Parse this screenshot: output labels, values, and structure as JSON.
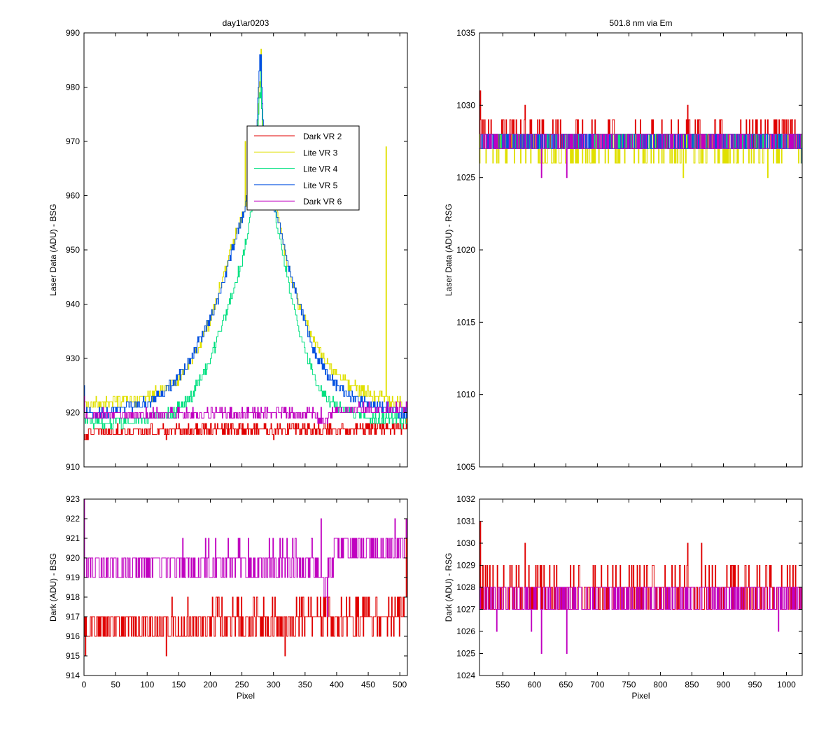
{
  "figure": {
    "background": "#ffffff",
    "trace_note": "traces are noisy integer-ADU steps; values listed are key points of the visible envelope"
  },
  "chart_data": [
    {
      "id": "bsg-laser",
      "type": "line",
      "title": "day1\\ar0203",
      "xlabel": "",
      "ylabel": "Laser Data (ADU) - BSG",
      "xlim": [
        0,
        512
      ],
      "ylim": [
        910,
        990
      ],
      "xticks": [
        0,
        50,
        100,
        150,
        200,
        250,
        300,
        350,
        400,
        450,
        500
      ],
      "xtick_labels_visible": false,
      "yticks": [
        910,
        920,
        930,
        940,
        950,
        960,
        970,
        980,
        990
      ],
      "grid": false,
      "legend": {
        "placement": "upper-middle-right",
        "entries": [
          "Dark VR 2",
          "Lite VR 3",
          "Lite VR 4",
          "Lite VR 5",
          "Dark VR 6"
        ]
      },
      "series": [
        {
          "name": "Dark VR 2",
          "color": "#e00000",
          "noise": 1,
          "points": [
            [
              0,
              916
            ],
            [
              20,
              916.5
            ],
            [
              100,
              916.6
            ],
            [
              200,
              916.8
            ],
            [
              300,
              917
            ],
            [
              400,
              917
            ],
            [
              450,
              917
            ],
            [
              500,
              917.3
            ],
            [
              512,
              917.5
            ]
          ],
          "spikes": [
            [
              2,
              915
            ],
            [
              130,
              915
            ],
            [
              300,
              915
            ],
            [
              510,
              919
            ]
          ]
        },
        {
          "name": "Lite VR 3",
          "color": "#e0e000",
          "noise": 1,
          "points": [
            [
              0,
              921
            ],
            [
              30,
              922
            ],
            [
              80,
              922
            ],
            [
              120,
              924
            ],
            [
              150,
              926
            ],
            [
              180,
              932
            ],
            [
              200,
              937
            ],
            [
              220,
              945
            ],
            [
              240,
              953
            ],
            [
              255,
              958
            ],
            [
              265,
              964
            ],
            [
              272,
              968
            ],
            [
              278,
              982
            ],
            [
              283,
              972
            ],
            [
              290,
              965
            ],
            [
              300,
              960
            ],
            [
              310,
              955
            ],
            [
              320,
              948
            ],
            [
              340,
              940
            ],
            [
              360,
              934
            ],
            [
              380,
              930
            ],
            [
              400,
              927
            ],
            [
              420,
              925
            ],
            [
              440,
              924
            ],
            [
              460,
              923
            ],
            [
              500,
              922
            ],
            [
              512,
              919
            ]
          ],
          "spikes": [
            [
              255,
              970
            ],
            [
              280,
              987
            ],
            [
              478,
              969
            ],
            [
              484,
              920
            ]
          ]
        },
        {
          "name": "Lite VR 4",
          "color": "#00e080",
          "noise": 1,
          "points": [
            [
              0,
              919
            ],
            [
              20,
              918
            ],
            [
              60,
              918
            ],
            [
              100,
              919
            ],
            [
              140,
              920
            ],
            [
              170,
              923
            ],
            [
              200,
              930
            ],
            [
              230,
              940
            ],
            [
              250,
              948
            ],
            [
              262,
              955
            ],
            [
              270,
              962
            ],
            [
              278,
              979
            ],
            [
              285,
              970
            ],
            [
              295,
              963
            ],
            [
              305,
              955
            ],
            [
              320,
              946
            ],
            [
              340,
              935
            ],
            [
              360,
              928
            ],
            [
              380,
              923
            ],
            [
              400,
              921
            ],
            [
              430,
              920
            ],
            [
              460,
              919
            ],
            [
              490,
              919
            ],
            [
              512,
              918
            ]
          ],
          "spikes": [
            [
              280,
              985
            ]
          ]
        },
        {
          "name": "Lite VR 5",
          "color": "#0050e0",
          "noise": 1,
          "points": [
            [
              0,
              920
            ],
            [
              30,
              920
            ],
            [
              70,
              921
            ],
            [
              100,
              922
            ],
            [
              130,
              924
            ],
            [
              160,
              928
            ],
            [
              190,
              935
            ],
            [
              210,
              940
            ],
            [
              230,
              948
            ],
            [
              250,
              956
            ],
            [
              262,
              962
            ],
            [
              272,
              968
            ],
            [
              278,
              986
            ],
            [
              284,
              972
            ],
            [
              292,
              962
            ],
            [
              302,
              957
            ],
            [
              310,
              955
            ],
            [
              325,
              946
            ],
            [
              345,
              938
            ],
            [
              365,
              931
            ],
            [
              385,
              927
            ],
            [
              410,
              924
            ],
            [
              440,
              922
            ],
            [
              470,
              921
            ],
            [
              500,
              920
            ],
            [
              512,
              920
            ]
          ],
          "spikes": [
            [
              0,
              925
            ],
            [
              280,
              986
            ]
          ]
        },
        {
          "name": "Dark VR 6",
          "color": "#c000c0",
          "noise": 1,
          "points": [
            [
              0,
              919.5
            ],
            [
              100,
              919.6
            ],
            [
              200,
              919.7
            ],
            [
              300,
              919.8
            ],
            [
              360,
              920
            ],
            [
              370,
              919
            ],
            [
              380,
              918.5
            ],
            [
              390,
              920
            ],
            [
              400,
              920.5
            ],
            [
              450,
              920.6
            ],
            [
              500,
              920.7
            ],
            [
              512,
              921
            ]
          ],
          "spikes": [
            [
              0,
              923
            ],
            [
              375,
              921
            ],
            [
              385,
              918
            ],
            [
              510,
              922
            ]
          ]
        }
      ]
    },
    {
      "id": "rsg-laser",
      "type": "line",
      "title": "501.8 nm via Em",
      "xlabel": "",
      "ylabel": "Laser Data (ADU) - RSG",
      "xlim": [
        513,
        1025
      ],
      "ylim": [
        1005,
        1035
      ],
      "xticks": [
        550,
        600,
        650,
        700,
        750,
        800,
        850,
        900,
        950,
        1000
      ],
      "xtick_labels_visible": false,
      "yticks": [
        1005,
        1010,
        1015,
        1020,
        1025,
        1030,
        1035
      ],
      "grid": false,
      "series": [
        {
          "name": "Dark VR 2",
          "color": "#e00000",
          "noise": 1,
          "points": [
            [
              513,
              1027.8
            ],
            [
              1025,
              1027.8
            ]
          ],
          "spikes": [
            [
              514,
              1031
            ],
            [
              585,
              1030
            ],
            [
              843,
              1030
            ]
          ]
        },
        {
          "name": "Lite VR 3",
          "color": "#e0e000",
          "noise": 1.2,
          "points": [
            [
              513,
              1027.2
            ],
            [
              1025,
              1027.2
            ]
          ],
          "spikes": [
            [
              836,
              1025
            ],
            [
              970,
              1025
            ]
          ]
        },
        {
          "name": "Lite VR 4",
          "color": "#00e080",
          "noise": 1,
          "points": [
            [
              513,
              1027.5
            ],
            [
              1025,
              1027.5
            ]
          ],
          "spikes": []
        },
        {
          "name": "Lite VR 5",
          "color": "#0050e0",
          "noise": 1,
          "points": [
            [
              513,
              1027.5
            ],
            [
              1025,
              1027.5
            ]
          ],
          "spikes": [
            [
              1024,
              1026
            ]
          ]
        },
        {
          "name": "Dark VR 6",
          "color": "#c000c0",
          "noise": 1,
          "points": [
            [
              513,
              1027.5
            ],
            [
              1025,
              1027.5
            ]
          ],
          "spikes": [
            [
              611,
              1025
            ],
            [
              651,
              1025
            ]
          ]
        }
      ]
    },
    {
      "id": "bsg-dark",
      "type": "line",
      "title": "",
      "xlabel": "Pixel",
      "ylabel": "Dark (ADU) - BSG",
      "xlim": [
        0,
        512
      ],
      "ylim": [
        914,
        923
      ],
      "xticks": [
        0,
        50,
        100,
        150,
        200,
        250,
        300,
        350,
        400,
        450,
        500
      ],
      "xtick_labels_visible": true,
      "yticks": [
        914,
        915,
        916,
        917,
        918,
        919,
        920,
        921,
        922,
        923
      ],
      "grid": false,
      "series": [
        {
          "name": "Dark VR 2",
          "color": "#e00000",
          "noise": 1,
          "points": [
            [
              0,
              916.5
            ],
            [
              100,
              916.5
            ],
            [
              200,
              916.6
            ],
            [
              300,
              916.8
            ],
            [
              360,
              917
            ],
            [
              450,
              917
            ],
            [
              500,
              917
            ],
            [
              512,
              918.5
            ]
          ],
          "spikes": [
            [
              2,
              915
            ],
            [
              130,
              915
            ],
            [
              318,
              915
            ],
            [
              510,
              922
            ]
          ]
        },
        {
          "name": "Dark VR 6",
          "color": "#c000c0",
          "noise": 1,
          "points": [
            [
              0,
              919.5
            ],
            [
              100,
              919.5
            ],
            [
              200,
              919.6
            ],
            [
              300,
              919.7
            ],
            [
              365,
              919.8
            ],
            [
              372,
              919
            ],
            [
              380,
              918.5
            ],
            [
              395,
              920
            ],
            [
              400,
              920.5
            ],
            [
              450,
              920.5
            ],
            [
              500,
              920.6
            ],
            [
              512,
              921
            ]
          ],
          "spikes": [
            [
              0,
              923
            ],
            [
              375,
              922
            ],
            [
              385,
              917
            ],
            [
              510,
              922
            ]
          ]
        }
      ]
    },
    {
      "id": "rsg-dark",
      "type": "line",
      "title": "",
      "xlabel": "Pixel",
      "ylabel": "Dark (ADU) - RSG",
      "xlim": [
        513,
        1025
      ],
      "ylim": [
        1024,
        1032
      ],
      "xticks": [
        550,
        600,
        650,
        700,
        750,
        800,
        850,
        900,
        950,
        1000
      ],
      "xtick_labels_visible": true,
      "yticks": [
        1024,
        1025,
        1026,
        1027,
        1028,
        1029,
        1030,
        1031,
        1032
      ],
      "grid": false,
      "series": [
        {
          "name": "Dark VR 2",
          "color": "#e00000",
          "noise": 1,
          "points": [
            [
              513,
              1027.8
            ],
            [
              1025,
              1027.8
            ]
          ],
          "spikes": [
            [
              514,
              1031
            ],
            [
              585,
              1030
            ],
            [
              843,
              1030
            ],
            [
              865,
              1030
            ]
          ]
        },
        {
          "name": "Dark VR 6",
          "color": "#c000c0",
          "noise": 1,
          "points": [
            [
              513,
              1027.5
            ],
            [
              1025,
              1027.5
            ]
          ],
          "spikes": [
            [
              611,
              1025
            ],
            [
              651,
              1025
            ],
            [
              540,
              1026
            ],
            [
              595,
              1026
            ],
            [
              987,
              1026
            ]
          ]
        }
      ]
    }
  ]
}
